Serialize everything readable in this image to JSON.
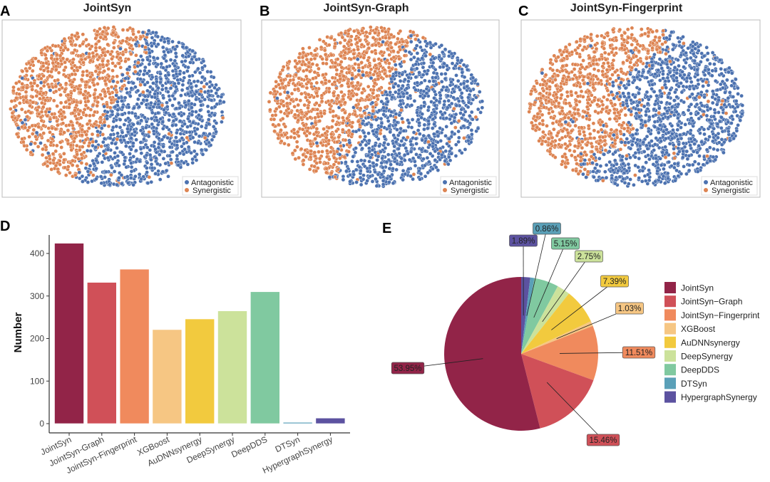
{
  "colors": {
    "antagonistic": "#4C72B0",
    "synergistic": "#DD8452"
  },
  "chart_data": [
    {
      "panel": "A",
      "type": "scatter",
      "title": "JointSyn",
      "legend": [
        "Antagonistic",
        "Synergistic"
      ],
      "legend_placement": "bottom-right",
      "axes": "hidden"
    },
    {
      "panel": "B",
      "type": "scatter",
      "title": "JointSyn-Graph",
      "legend": [
        "Antagonistic",
        "Synergistic"
      ],
      "legend_placement": "bottom-right",
      "axes": "hidden"
    },
    {
      "panel": "C",
      "type": "scatter",
      "title": "JointSyn-Fingerprint",
      "legend": [
        "Antagonistic",
        "Synergistic"
      ],
      "legend_placement": "bottom-right",
      "axes": "hidden"
    },
    {
      "panel": "D",
      "type": "bar",
      "ylabel": "Number",
      "xlabel": "",
      "categories": [
        "JointSyn",
        "JointSyn-Graph",
        "JointSyn-Fingerprint",
        "XGBoost",
        "AuDNNsynergy",
        "DeepSynergy",
        "DeepDDS",
        "DTSyn",
        "HypergraphSynergy"
      ],
      "values": [
        424,
        332,
        363,
        221,
        246,
        265,
        310,
        3,
        13
      ],
      "colors": [
        "#922448",
        "#D05058",
        "#F08A5D",
        "#F6C683",
        "#F2CA3E",
        "#CCE29B",
        "#80C9A0",
        "#5AA0B8",
        "#5C52A0"
      ],
      "yticks": [
        0,
        100,
        200,
        300,
        400
      ],
      "ylim": [
        0,
        445
      ],
      "grid": false
    },
    {
      "panel": "E",
      "type": "pie",
      "categories": [
        "JointSyn",
        "JointSyn−Graph",
        "JointSyn−Fingerprint",
        "XGBoost",
        "AuDNNsynergy",
        "DeepSynergy",
        "DeepDDS",
        "DTSyn",
        "HypergraphSynergy"
      ],
      "values": [
        53.95,
        15.46,
        11.51,
        1.03,
        7.39,
        2.75,
        5.15,
        0.86,
        1.89
      ],
      "labels": [
        "53.95%",
        "15.46%",
        "11.51%",
        "1.03%",
        "7.39%",
        "2.75%",
        "5.15%",
        "0.86%",
        "1.89%"
      ],
      "colors": [
        "#922448",
        "#D05058",
        "#F08A5D",
        "#F6C683",
        "#F2CA3E",
        "#CCE29B",
        "#80C9A0",
        "#5AA0B8",
        "#5C52A0"
      ],
      "legend_placement": "right"
    }
  ]
}
